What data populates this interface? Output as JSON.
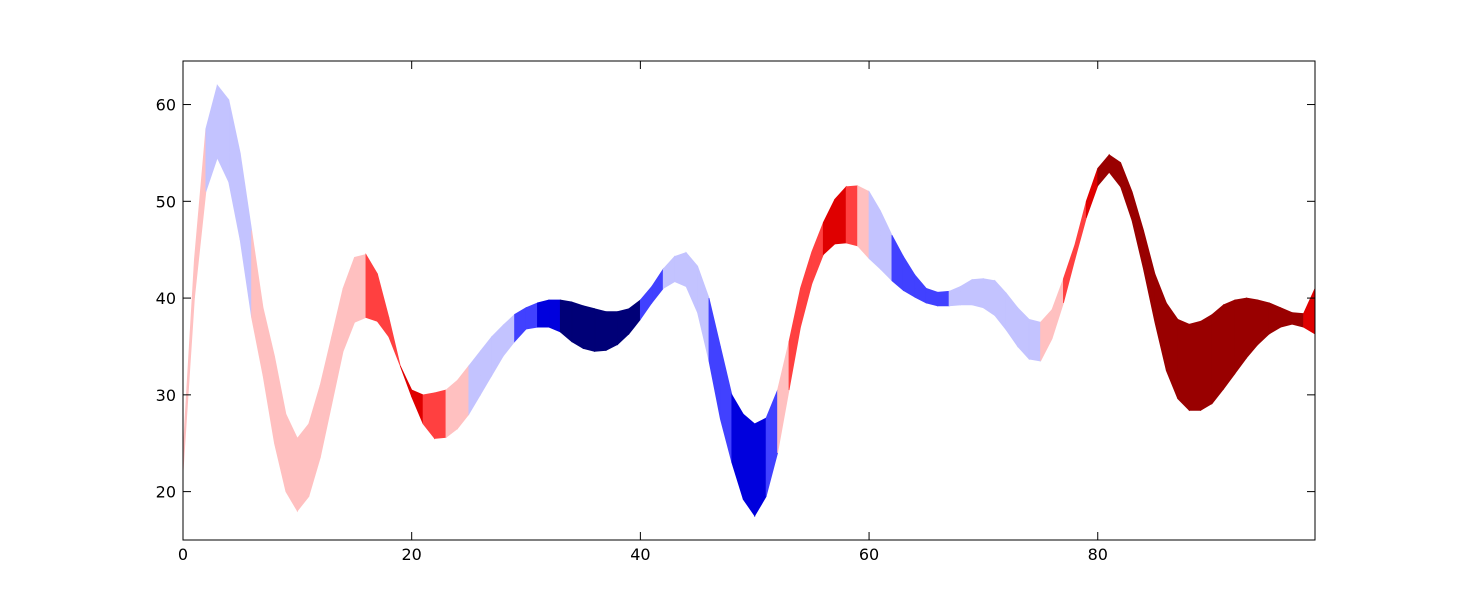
{
  "chart_data": {
    "type": "area",
    "title": "",
    "xlabel": "",
    "ylabel": "",
    "xlim": [
      0,
      99
    ],
    "ylim": [
      15,
      64.5
    ],
    "xticks": [
      0,
      20,
      40,
      60,
      80
    ],
    "yticks": [
      20,
      30,
      40,
      50,
      60
    ],
    "grid": false,
    "palette": {
      "dark-red": "#990000",
      "red": "#df0000",
      "light-red": "#ff4040",
      "pink": "#ffc0c0",
      "lavender": "#c3c3ff",
      "light-blue": "#4141ff",
      "blue": "#0000dd",
      "dark-blue": "#000077"
    },
    "x": [
      0,
      1,
      2,
      3,
      4,
      5,
      6,
      7,
      8,
      9,
      10,
      11,
      12,
      13,
      14,
      15,
      16,
      17,
      18,
      19,
      20,
      21,
      22,
      23,
      24,
      25,
      26,
      27,
      28,
      29,
      30,
      31,
      32,
      33,
      34,
      35,
      36,
      37,
      38,
      39,
      40,
      41,
      42,
      43,
      44,
      45,
      46,
      47,
      48,
      49,
      50,
      51,
      52,
      53,
      54,
      55,
      56,
      57,
      58,
      59,
      60,
      61,
      62,
      63,
      64,
      65,
      66,
      67,
      68,
      69,
      70,
      71,
      72,
      73,
      74,
      75,
      76,
      77,
      78,
      79,
      80,
      81,
      82,
      83,
      84,
      85,
      86,
      87,
      88,
      89,
      90,
      91,
      92,
      93,
      94,
      95,
      96,
      97,
      98,
      99
    ],
    "upper": [
      24,
      44,
      57.5,
      62,
      60.5,
      55,
      47,
      39,
      34,
      28,
      25.5,
      27,
      31,
      36,
      41,
      44.2,
      44.5,
      42.5,
      38,
      33,
      30.5,
      30,
      30.2,
      30.5,
      31.5,
      33,
      34.5,
      36,
      37.2,
      38.3,
      39,
      39.5,
      39.8,
      39.8,
      39.6,
      39.2,
      38.9,
      38.6,
      38.6,
      38.9,
      39.8,
      41.2,
      43,
      44.3,
      44.7,
      43.3,
      40,
      35,
      30,
      28,
      27,
      27.6,
      30.5,
      35.5,
      41,
      44.8,
      47.8,
      50.2,
      51.5,
      51.6,
      51,
      49,
      46.5,
      44.3,
      42.4,
      41,
      40.6,
      40.7,
      41.2,
      41.9,
      42,
      41.8,
      40.5,
      39,
      37.8,
      37.5,
      38.8,
      42,
      45.5,
      50,
      53.4,
      54.8,
      54,
      51,
      47,
      42.5,
      39.5,
      37.8,
      37.3,
      37.6,
      38.3,
      39.3,
      39.8,
      40,
      39.8,
      39.5,
      39,
      38.5,
      38.4,
      41
    ],
    "lower": [
      22,
      40,
      51,
      54.5,
      52,
      46,
      38,
      32,
      25,
      20,
      18,
      19.5,
      23.5,
      29,
      34.5,
      37.5,
      38,
      37.6,
      36,
      33,
      29.8,
      27,
      25.5,
      25.6,
      26.5,
      28,
      30,
      32,
      34,
      35.5,
      36.8,
      37,
      37,
      36.5,
      35.5,
      34.8,
      34.5,
      34.6,
      35.2,
      36.3,
      37.8,
      39.5,
      41,
      41.7,
      41.2,
      38.5,
      33.5,
      27.5,
      23,
      19.2,
      17.5,
      19.5,
      24,
      30.5,
      37,
      41.5,
      44.5,
      45.6,
      45.7,
      45.4,
      44.1,
      43,
      41.8,
      40.8,
      40.1,
      39.5,
      39.2,
      39.2,
      39.3,
      39.3,
      39,
      38.2,
      36.7,
      35,
      33.7,
      33.5,
      35.8,
      39.5,
      44,
      48.3,
      51.6,
      53,
      51.5,
      48,
      43,
      37.5,
      32.5,
      29.6,
      28.4,
      28.4,
      29.1,
      30.6,
      32.2,
      33.8,
      35.2,
      36.3,
      37,
      37.3,
      37,
      36.3
    ],
    "segment_colors": [
      "pink",
      "pink",
      "lavender",
      "lavender",
      "lavender",
      "lavender",
      "pink",
      "pink",
      "pink",
      "pink",
      "pink",
      "pink",
      "pink",
      "pink",
      "pink",
      "pink",
      "light-red",
      "light-red",
      "light-red",
      "red",
      "red",
      "light-red",
      "light-red",
      "pink",
      "pink",
      "lavender",
      "lavender",
      "lavender",
      "lavender",
      "light-blue",
      "light-blue",
      "blue",
      "blue",
      "dark-blue",
      "dark-blue",
      "dark-blue",
      "dark-blue",
      "dark-blue",
      "dark-blue",
      "dark-blue",
      "light-blue",
      "light-blue",
      "lavender",
      "lavender",
      "lavender",
      "lavender",
      "light-blue",
      "light-blue",
      "blue",
      "blue",
      "blue",
      "light-blue",
      "pink",
      "light-red",
      "light-red",
      "light-red",
      "red",
      "red",
      "light-red",
      "pink",
      "lavender",
      "lavender",
      "light-blue",
      "light-blue",
      "light-blue",
      "light-blue",
      "light-blue",
      "lavender",
      "lavender",
      "lavender",
      "lavender",
      "lavender",
      "lavender",
      "lavender",
      "lavender",
      "pink",
      "pink",
      "light-red",
      "light-red",
      "red",
      "dark-red",
      "dark-red",
      "dark-red",
      "dark-red",
      "dark-red",
      "dark-red",
      "dark-red",
      "dark-red",
      "dark-red",
      "dark-red",
      "dark-red",
      "dark-red",
      "dark-red",
      "dark-red",
      "dark-red",
      "dark-red",
      "dark-red",
      "dark-red",
      "red",
      "red"
    ]
  }
}
